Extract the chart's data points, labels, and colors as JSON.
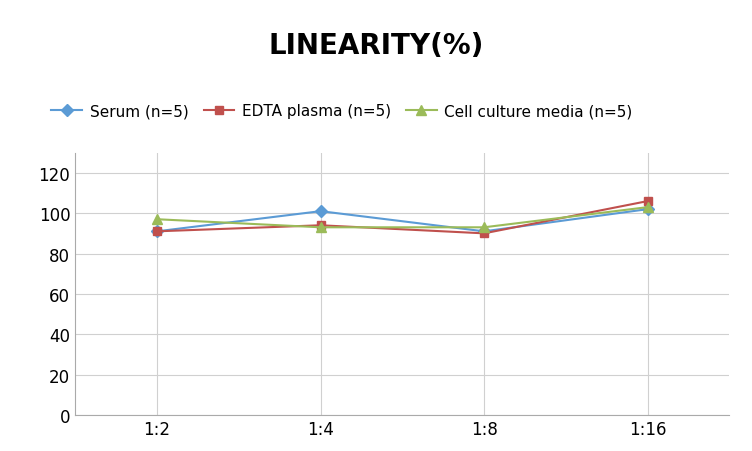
{
  "title": "LINEARITY(%)",
  "x_labels": [
    "1:2",
    "1:4",
    "1:8",
    "1:16"
  ],
  "x_positions": [
    0,
    1,
    2,
    3
  ],
  "series": [
    {
      "label": "Serum (n=5)",
      "values": [
        91,
        101,
        91,
        102
      ],
      "color": "#5B9BD5",
      "marker": "D",
      "markersize": 6
    },
    {
      "label": "EDTA plasma (n=5)",
      "values": [
        91,
        94,
        90,
        106
      ],
      "color": "#C0504D",
      "marker": "s",
      "markersize": 6
    },
    {
      "label": "Cell culture media (n=5)",
      "values": [
        97,
        93,
        93,
        103
      ],
      "color": "#9BBB59",
      "marker": "^",
      "markersize": 7
    }
  ],
  "ylim": [
    0,
    130
  ],
  "yticks": [
    0,
    20,
    40,
    60,
    80,
    100,
    120
  ],
  "background_color": "#FFFFFF",
  "grid_color": "#D0D0D0",
  "title_fontsize": 20,
  "legend_fontsize": 11,
  "tick_fontsize": 12
}
